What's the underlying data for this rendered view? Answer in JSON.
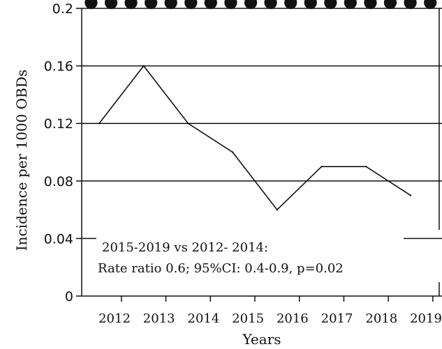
{
  "chart_data": {
    "type": "line",
    "title": "",
    "xlabel": "Years",
    "ylabel": "Incidence per 1000 OBDs",
    "ylim": [
      0,
      0.2
    ],
    "yticks": [
      "0",
      "0.04",
      "0.08",
      "0.12",
      "0.16",
      "0.2"
    ],
    "categories": [
      "2012",
      "2013",
      "2014",
      "2015",
      "2016",
      "2017",
      "2018",
      "2019"
    ],
    "series": [
      {
        "values": [
          0.12,
          0.16,
          0.12,
          0.1,
          0.06,
          0.09,
          0.09,
          0.07
        ]
      }
    ],
    "grid": "horizontal",
    "annotation_lines": [
      "2015-2019 vs 2012- 2014:",
      "Rate ratio 0.6; 95%CI: 0.4-0.9, p=0.02"
    ],
    "colors": {
      "line": "#111111",
      "grid": "#111111"
    }
  }
}
